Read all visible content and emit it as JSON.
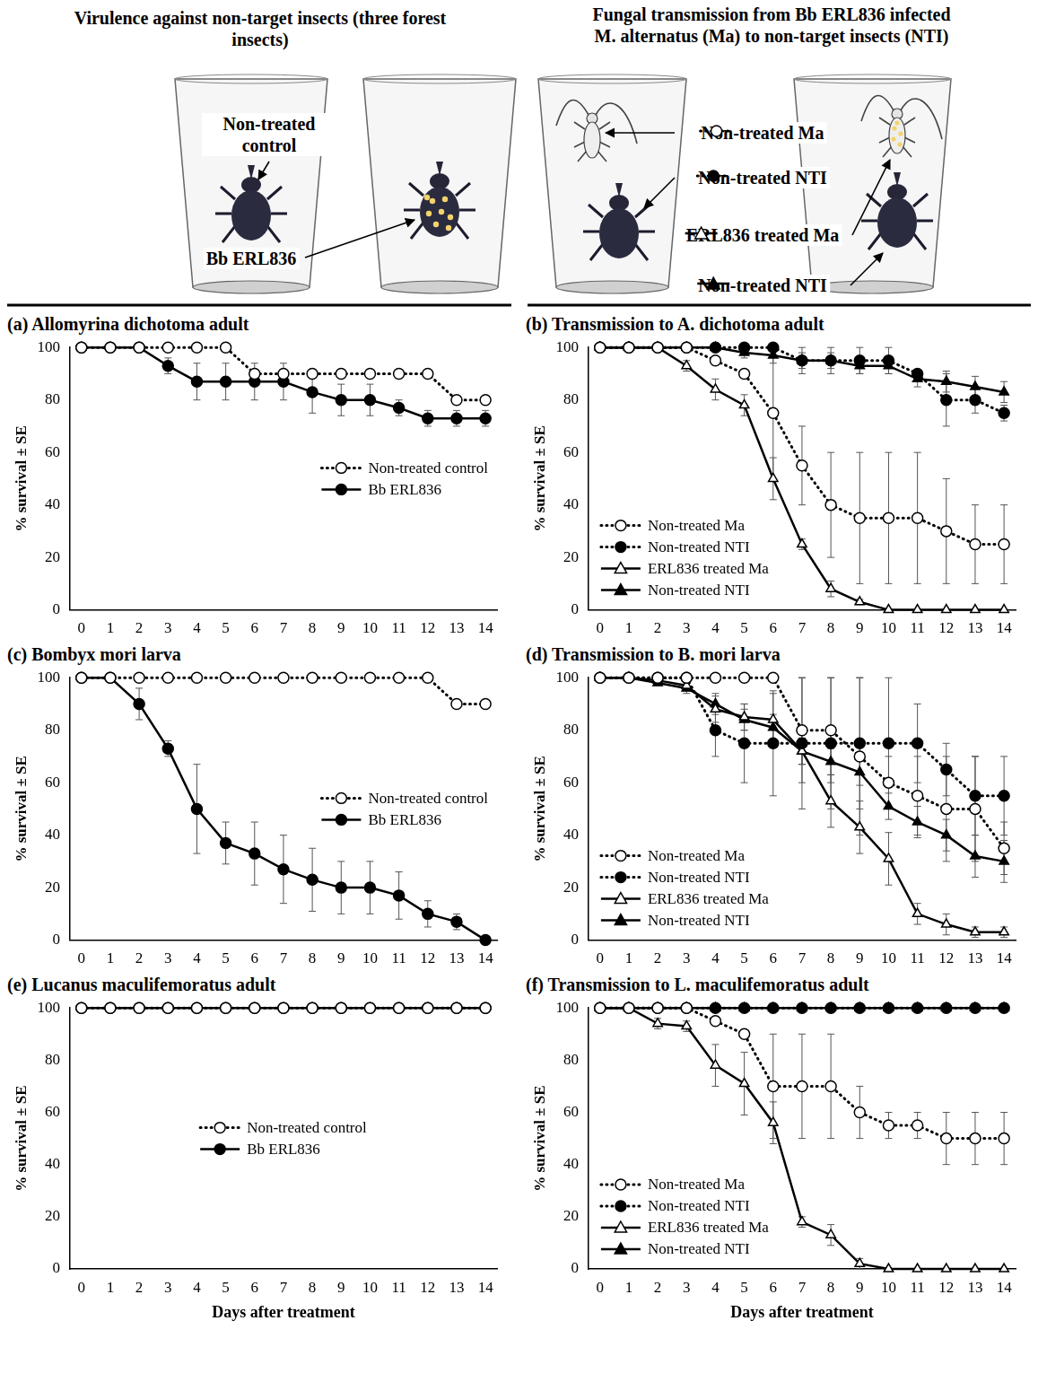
{
  "header": {
    "left": {
      "title": "Virulence against non-target insects (three forest insects)",
      "labels": [
        "Non-treated control",
        "Bb ERL836"
      ]
    },
    "right": {
      "title": "Fungal transmission from Bb ERL836 infected M. alternatus (Ma) to non-target insects (NTI)",
      "labels": [
        "Non-treated Ma",
        "Non-treated NTI",
        "ERL836 treated Ma",
        "Non-treated NTI"
      ]
    }
  },
  "chart_data": [
    {
      "type": "line",
      "title": "(a) Allomyrina dichotoma adult",
      "y_label": "% survival ± SE",
      "x": [
        0,
        1,
        2,
        3,
        4,
        5,
        6,
        7,
        8,
        9,
        10,
        11,
        12,
        13,
        14
      ],
      "xlim": [
        -0.4,
        14.4
      ],
      "xticks": [
        0,
        1,
        2,
        3,
        4,
        5,
        6,
        7,
        8,
        9,
        10,
        11,
        12,
        13,
        14
      ],
      "ylim": [
        0,
        100
      ],
      "yticks": [
        0,
        20,
        40,
        60,
        80,
        100
      ],
      "grid": false,
      "legend": "center right",
      "series": [
        {
          "name": "Non-treated control",
          "color": "#000000",
          "marker": "open circle",
          "line_style": "dotted",
          "values": [
            100,
            100,
            100,
            100,
            100,
            100,
            90,
            90,
            90,
            90,
            90,
            90,
            90,
            80,
            80
          ]
        },
        {
          "name": "Bb ERL836",
          "color": "#000000",
          "marker": "filled circle",
          "line_style": "solid",
          "values": [
            100,
            100,
            100,
            93,
            87,
            87,
            87,
            87,
            83,
            80,
            80,
            77,
            73,
            73,
            73
          ],
          "errors": [
            0,
            0,
            0,
            3,
            7,
            7,
            7,
            7,
            8,
            6,
            6,
            3,
            3,
            3,
            3
          ]
        }
      ]
    },
    {
      "type": "line",
      "title": "(b) Transmission to A. dichotoma adult",
      "y_label": "% survival ± SE",
      "x": [
        0,
        1,
        2,
        3,
        4,
        5,
        6,
        7,
        8,
        9,
        10,
        11,
        12,
        13,
        14
      ],
      "xlim": [
        -0.4,
        14.4
      ],
      "xticks": [
        0,
        1,
        2,
        3,
        4,
        5,
        6,
        7,
        8,
        9,
        10,
        11,
        12,
        13,
        14
      ],
      "ylim": [
        0,
        100
      ],
      "yticks": [
        0,
        20,
        40,
        60,
        80,
        100
      ],
      "grid": false,
      "legend": "lower left",
      "series": [
        {
          "name": "Non-treated Ma",
          "color": "#000000",
          "marker": "open circle",
          "line_style": "dotted",
          "values": [
            100,
            100,
            100,
            100,
            95,
            90,
            75,
            55,
            40,
            35,
            35,
            35,
            30,
            25,
            25
          ],
          "errors": [
            0,
            0,
            0,
            0,
            0,
            0,
            25,
            15,
            20,
            25,
            25,
            25,
            20,
            15,
            15
          ]
        },
        {
          "name": "Non-treated NTI",
          "color": "#000000",
          "marker": "filled circle",
          "line_style": "dotted",
          "values": [
            100,
            100,
            100,
            100,
            100,
            100,
            100,
            95,
            95,
            95,
            95,
            90,
            80,
            80,
            75
          ],
          "errors": [
            0,
            0,
            0,
            0,
            0,
            0,
            0,
            5,
            5,
            5,
            5,
            0,
            10,
            5,
            3
          ]
        },
        {
          "name": "ERL836 treated Ma",
          "color": "#000000",
          "marker": "open triangle",
          "line_style": "solid",
          "values": [
            100,
            100,
            100,
            93,
            84,
            78,
            50,
            25,
            8,
            3,
            0,
            0,
            0,
            0,
            0
          ],
          "errors": [
            0,
            0,
            0,
            2,
            4,
            4,
            8,
            2,
            3,
            1,
            0,
            0,
            0,
            0,
            0
          ]
        },
        {
          "name": "Non-treated NTI",
          "color": "#000000",
          "marker": "filled triangle",
          "line_style": "solid",
          "values": [
            100,
            100,
            100,
            100,
            100,
            98,
            97,
            95,
            95,
            93,
            93,
            88,
            87,
            85,
            83
          ],
          "errors": [
            0,
            0,
            0,
            0,
            0,
            2,
            3,
            3,
            3,
            3,
            3,
            3,
            4,
            4,
            4
          ]
        }
      ]
    },
    {
      "type": "line",
      "title": "(c) Bombyx mori larva",
      "y_label": "% survival ± SE",
      "x": [
        0,
        1,
        2,
        3,
        4,
        5,
        6,
        7,
        8,
        9,
        10,
        11,
        12,
        13,
        14
      ],
      "xlim": [
        -0.4,
        14.4
      ],
      "xticks": [
        0,
        1,
        2,
        3,
        4,
        5,
        6,
        7,
        8,
        9,
        10,
        11,
        12,
        13,
        14
      ],
      "ylim": [
        0,
        100
      ],
      "yticks": [
        0,
        20,
        40,
        60,
        80,
        100
      ],
      "grid": false,
      "legend": "center right",
      "series": [
        {
          "name": "Non-treated control",
          "color": "#000000",
          "marker": "open circle",
          "line_style": "dotted",
          "values": [
            100,
            100,
            100,
            100,
            100,
            100,
            100,
            100,
            100,
            100,
            100,
            100,
            100,
            90,
            90
          ]
        },
        {
          "name": "Bb ERL836",
          "color": "#000000",
          "marker": "filled circle",
          "line_style": "solid",
          "values": [
            100,
            100,
            90,
            73,
            50,
            37,
            33,
            27,
            23,
            20,
            20,
            17,
            10,
            7,
            0
          ],
          "errors": [
            0,
            0,
            6,
            3,
            17,
            8,
            12,
            13,
            12,
            10,
            10,
            9,
            5,
            3,
            0
          ]
        }
      ]
    },
    {
      "type": "line",
      "title": "(d) Transmission to B. mori larva",
      "y_label": "% survival ± SE",
      "x": [
        0,
        1,
        2,
        3,
        4,
        5,
        6,
        7,
        8,
        9,
        10,
        11,
        12,
        13,
        14
      ],
      "xlim": [
        -0.4,
        14.4
      ],
      "xticks": [
        0,
        1,
        2,
        3,
        4,
        5,
        6,
        7,
        8,
        9,
        10,
        11,
        12,
        13,
        14
      ],
      "ylim": [
        0,
        100
      ],
      "yticks": [
        0,
        20,
        40,
        60,
        80,
        100
      ],
      "grid": false,
      "legend": "lower left",
      "series": [
        {
          "name": "Non-treated Ma",
          "color": "#000000",
          "marker": "open circle",
          "line_style": "dotted",
          "values": [
            100,
            100,
            100,
            100,
            100,
            100,
            100,
            80,
            80,
            70,
            60,
            55,
            50,
            50,
            35
          ],
          "errors": [
            0,
            0,
            0,
            0,
            0,
            0,
            0,
            20,
            20,
            30,
            10,
            15,
            20,
            20,
            10
          ]
        },
        {
          "name": "Non-treated NTI",
          "color": "#000000",
          "marker": "filled circle",
          "line_style": "dotted",
          "values": [
            100,
            100,
            100,
            100,
            80,
            75,
            75,
            75,
            75,
            75,
            75,
            75,
            65,
            55,
            55
          ],
          "errors": [
            0,
            0,
            0,
            0,
            10,
            15,
            20,
            25,
            25,
            25,
            25,
            15,
            10,
            15,
            15
          ]
        },
        {
          "name": "ERL836 treated Ma",
          "color": "#000000",
          "marker": "open triangle",
          "line_style": "solid",
          "values": [
            100,
            100,
            99,
            97,
            88,
            85,
            84,
            72,
            53,
            43,
            31,
            10,
            6,
            3,
            3
          ],
          "errors": [
            0,
            0,
            0,
            2,
            5,
            5,
            10,
            5,
            10,
            10,
            10,
            4,
            4,
            2,
            2
          ]
        },
        {
          "name": "Non-treated NTI",
          "color": "#000000",
          "marker": "filled triangle",
          "line_style": "solid",
          "values": [
            100,
            100,
            98,
            96,
            90,
            84,
            81,
            72,
            68,
            64,
            51,
            45,
            40,
            32,
            30
          ],
          "errors": [
            0,
            0,
            1,
            2,
            4,
            4,
            5,
            5,
            5,
            5,
            5,
            6,
            6,
            8,
            8
          ]
        }
      ]
    },
    {
      "type": "line",
      "title": "(e) Lucanus maculifemoratus adult",
      "y_label": "% survival ± SE",
      "x_label": "Days after treatment",
      "x": [
        0,
        1,
        2,
        3,
        4,
        5,
        6,
        7,
        8,
        9,
        10,
        11,
        12,
        13,
        14
      ],
      "xlim": [
        -0.4,
        14.4
      ],
      "xticks": [
        0,
        1,
        2,
        3,
        4,
        5,
        6,
        7,
        8,
        9,
        10,
        11,
        12,
        13,
        14
      ],
      "ylim": [
        0,
        100
      ],
      "yticks": [
        0,
        20,
        40,
        60,
        80,
        100
      ],
      "grid": false,
      "legend": "center",
      "series": [
        {
          "name": "Non-treated control",
          "color": "#000000",
          "marker": "open circle",
          "line_style": "dotted",
          "values": [
            100,
            100,
            100,
            100,
            100,
            100,
            100,
            100,
            100,
            100,
            100,
            100,
            100,
            100,
            100
          ]
        },
        {
          "name": "Bb ERL836",
          "color": "#000000",
          "marker": "filled circle",
          "line_style": "solid",
          "values": [
            100,
            100,
            100,
            100,
            100,
            100,
            100,
            100,
            100,
            100,
            100,
            100,
            100,
            100,
            100
          ]
        }
      ]
    },
    {
      "type": "line",
      "title": "(f) Transmission to L. maculifemoratus adult",
      "y_label": "% survival ± SE",
      "x_label": "Days after treatment",
      "x": [
        0,
        1,
        2,
        3,
        4,
        5,
        6,
        7,
        8,
        9,
        10,
        11,
        12,
        13,
        14
      ],
      "xlim": [
        -0.4,
        14.4
      ],
      "xticks": [
        0,
        1,
        2,
        3,
        4,
        5,
        6,
        7,
        8,
        9,
        10,
        11,
        12,
        13,
        14
      ],
      "ylim": [
        0,
        100
      ],
      "yticks": [
        0,
        20,
        40,
        60,
        80,
        100
      ],
      "grid": false,
      "legend": "lower left",
      "series": [
        {
          "name": "Non-treated Ma",
          "color": "#000000",
          "marker": "open circle",
          "line_style": "dotted",
          "values": [
            100,
            100,
            100,
            100,
            95,
            90,
            70,
            70,
            70,
            60,
            55,
            55,
            50,
            50,
            50
          ],
          "errors": [
            0,
            0,
            0,
            0,
            0,
            0,
            20,
            20,
            20,
            10,
            5,
            5,
            10,
            10,
            10
          ]
        },
        {
          "name": "Non-treated NTI",
          "color": "#000000",
          "marker": "filled circle",
          "line_style": "dotted",
          "values": [
            100,
            100,
            100,
            100,
            100,
            100,
            100,
            100,
            100,
            100,
            100,
            100,
            100,
            100,
            100
          ]
        },
        {
          "name": "ERL836 treated Ma",
          "color": "#000000",
          "marker": "open triangle",
          "line_style": "solid",
          "values": [
            100,
            100,
            94,
            93,
            78,
            71,
            56,
            18,
            13,
            2,
            0,
            0,
            0,
            0,
            0
          ],
          "errors": [
            0,
            0,
            2,
            2,
            8,
            12,
            8,
            2,
            4,
            2,
            0,
            0,
            0,
            0,
            0
          ]
        },
        {
          "name": "Non-treated NTI",
          "color": "#000000",
          "marker": "filled triangle",
          "line_style": "solid",
          "values": [
            100,
            100,
            100,
            100,
            100,
            100,
            100,
            100,
            100,
            100,
            100,
            100,
            100,
            100,
            100
          ]
        }
      ]
    }
  ]
}
